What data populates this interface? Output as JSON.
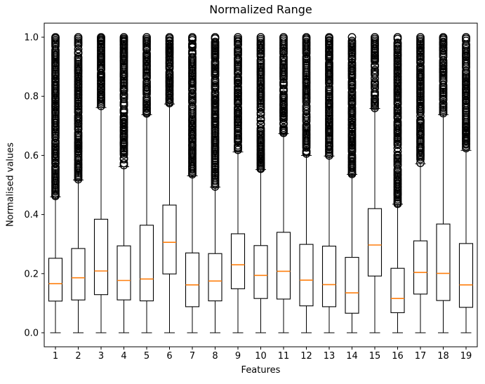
{
  "figure": {
    "title": "Normalized Range",
    "xlabel": "Features",
    "ylabel": "Normalised values"
  },
  "chart_data": {
    "type": "boxplot",
    "title": "Normalized Range",
    "xlabel": "Features",
    "ylabel": "Normalised values",
    "categories": [
      "1",
      "2",
      "3",
      "4",
      "5",
      "6",
      "7",
      "8",
      "9",
      "10",
      "11",
      "12",
      "13",
      "14",
      "15",
      "16",
      "17",
      "18",
      "19"
    ],
    "ytick_labels": [
      "0.0",
      "0.2",
      "0.4",
      "0.6",
      "0.8",
      "1.0"
    ],
    "ytick_values": [
      0.0,
      0.2,
      0.4,
      0.6,
      0.8,
      1.0
    ],
    "ylim": [
      -0.048,
      1.048
    ],
    "grid": false,
    "legend": "none",
    "box_color": "#000000",
    "median_color": "#ff7f0e",
    "fill_color": "#ffffff",
    "outlier_marker": "o",
    "boxes": [
      {
        "feature": "1",
        "whisker_low": 0.0,
        "q1": 0.107,
        "median": 0.166,
        "q3": 0.252,
        "whisker_high": 0.46,
        "outliers_from": 0.46,
        "outliers_to": 1.0
      },
      {
        "feature": "2",
        "whisker_low": 0.0,
        "q1": 0.111,
        "median": 0.186,
        "q3": 0.285,
        "whisker_high": 0.517,
        "outliers_from": 0.517,
        "outliers_to": 1.0
      },
      {
        "feature": "3",
        "whisker_low": 0.0,
        "q1": 0.129,
        "median": 0.209,
        "q3": 0.384,
        "whisker_high": 0.762,
        "outliers_from": 0.762,
        "outliers_to": 1.0
      },
      {
        "feature": "4",
        "whisker_low": 0.0,
        "q1": 0.111,
        "median": 0.177,
        "q3": 0.294,
        "whisker_high": 0.562,
        "outliers_from": 0.562,
        "outliers_to": 1.0
      },
      {
        "feature": "5",
        "whisker_low": 0.0,
        "q1": 0.108,
        "median": 0.182,
        "q3": 0.364,
        "whisker_high": 0.738,
        "outliers_from": 0.738,
        "outliers_to": 1.0
      },
      {
        "feature": "6",
        "whisker_low": 0.0,
        "q1": 0.199,
        "median": 0.306,
        "q3": 0.432,
        "whisker_high": 0.774,
        "outliers_from": 0.774,
        "outliers_to": 1.0
      },
      {
        "feature": "7",
        "whisker_low": 0.0,
        "q1": 0.088,
        "median": 0.162,
        "q3": 0.27,
        "whisker_high": 0.531,
        "outliers_from": 0.531,
        "outliers_to": 1.0
      },
      {
        "feature": "8",
        "whisker_low": 0.0,
        "q1": 0.108,
        "median": 0.175,
        "q3": 0.268,
        "whisker_high": 0.493,
        "outliers_from": 0.493,
        "outliers_to": 1.0
      },
      {
        "feature": "9",
        "whisker_low": 0.0,
        "q1": 0.149,
        "median": 0.23,
        "q3": 0.335,
        "whisker_high": 0.612,
        "outliers_from": 0.612,
        "outliers_to": 1.0
      },
      {
        "feature": "10",
        "whisker_low": 0.0,
        "q1": 0.116,
        "median": 0.194,
        "q3": 0.295,
        "whisker_high": 0.552,
        "outliers_from": 0.552,
        "outliers_to": 1.0
      },
      {
        "feature": "11",
        "whisker_low": 0.0,
        "q1": 0.114,
        "median": 0.208,
        "q3": 0.34,
        "whisker_high": 0.674,
        "outliers_from": 0.674,
        "outliers_to": 1.0
      },
      {
        "feature": "12",
        "whisker_low": 0.0,
        "q1": 0.091,
        "median": 0.178,
        "q3": 0.299,
        "whisker_high": 0.6,
        "outliers_from": 0.6,
        "outliers_to": 1.0
      },
      {
        "feature": "13",
        "whisker_low": 0.0,
        "q1": 0.088,
        "median": 0.163,
        "q3": 0.293,
        "whisker_high": 0.598,
        "outliers_from": 0.598,
        "outliers_to": 1.0
      },
      {
        "feature": "14",
        "whisker_low": 0.0,
        "q1": 0.066,
        "median": 0.135,
        "q3": 0.255,
        "whisker_high": 0.536,
        "outliers_from": 0.536,
        "outliers_to": 1.0
      },
      {
        "feature": "15",
        "whisker_low": 0.0,
        "q1": 0.192,
        "median": 0.297,
        "q3": 0.42,
        "whisker_high": 0.759,
        "outliers_from": 0.759,
        "outliers_to": 1.0
      },
      {
        "feature": "16",
        "whisker_low": 0.0,
        "q1": 0.068,
        "median": 0.116,
        "q3": 0.218,
        "whisker_high": 0.435,
        "outliers_from": 0.435,
        "outliers_to": 1.0
      },
      {
        "feature": "17",
        "whisker_low": 0.0,
        "q1": 0.131,
        "median": 0.204,
        "q3": 0.311,
        "whisker_high": 0.572,
        "outliers_from": 0.572,
        "outliers_to": 1.0
      },
      {
        "feature": "18",
        "whisker_low": 0.0,
        "q1": 0.109,
        "median": 0.201,
        "q3": 0.368,
        "whisker_high": 0.738,
        "outliers_from": 0.738,
        "outliers_to": 1.0
      },
      {
        "feature": "19",
        "whisker_low": 0.0,
        "q1": 0.086,
        "median": 0.162,
        "q3": 0.302,
        "whisker_high": 0.617,
        "outliers_from": 0.617,
        "outliers_to": 1.0
      }
    ]
  }
}
